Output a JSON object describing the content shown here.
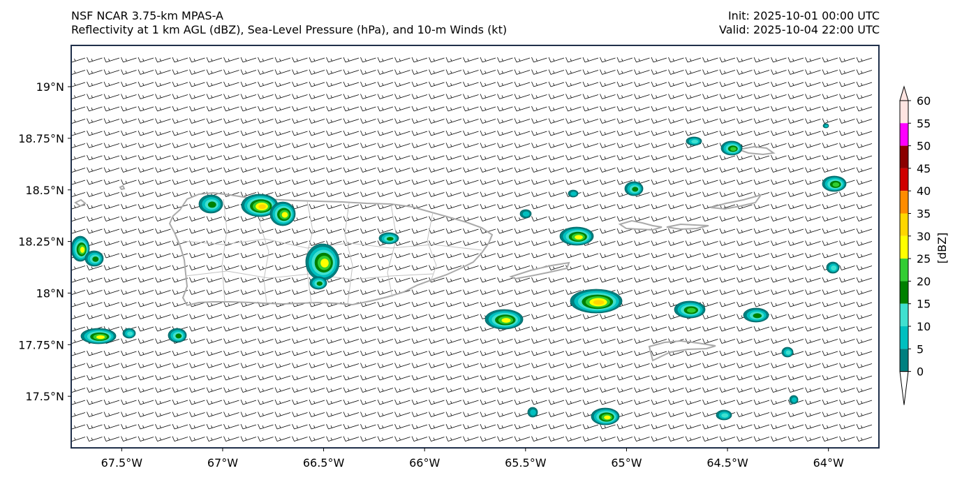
{
  "header": {
    "model": "NSF NCAR 3.75-km MPAS-A",
    "fields": "Reflectivity at 1 km AGL (dBZ), Sea-Level Pressure (hPa), and 10-m Winds (kt)",
    "init": "Init: 2025-10-01 00:00 UTC",
    "valid": "Valid: 2025-10-04 22:00 UTC"
  },
  "map": {
    "lon_range": [
      -67.75,
      -63.75
    ],
    "lat_range": [
      17.25,
      19.2
    ],
    "lat_ticks": [
      {
        "value": 19.0,
        "label": "19°N"
      },
      {
        "value": 18.75,
        "label": "18.75°N"
      },
      {
        "value": 18.5,
        "label": "18.5°N"
      },
      {
        "value": 18.25,
        "label": "18.25°N"
      },
      {
        "value": 18.0,
        "label": "18°N"
      },
      {
        "value": 17.75,
        "label": "17.75°N"
      },
      {
        "value": 17.5,
        "label": "17.5°N"
      }
    ],
    "lon_ticks": [
      {
        "value": -67.5,
        "label": "67.5°W"
      },
      {
        "value": -67.0,
        "label": "67°W"
      },
      {
        "value": -66.5,
        "label": "66.5°W"
      },
      {
        "value": -66.0,
        "label": "66°W"
      },
      {
        "value": -65.5,
        "label": "65.5°W"
      },
      {
        "value": -65.0,
        "label": "65°W"
      },
      {
        "value": -64.5,
        "label": "64.5°W"
      },
      {
        "value": -64.0,
        "label": "64°W"
      }
    ],
    "colors": {
      "coastline": "#a9a9a9",
      "barb": "#000000",
      "frame": "#1f2f4a"
    }
  },
  "colorbar": {
    "label": "[dBZ]",
    "ticks": [
      "0",
      "5",
      "10",
      "15",
      "20",
      "25",
      "30",
      "35",
      "40",
      "45",
      "50",
      "55",
      "60"
    ],
    "colors": [
      "#ffffff",
      "#008080",
      "#00c0c0",
      "#40e0d0",
      "#008000",
      "#32cd32",
      "#ffff00",
      "#ffd700",
      "#ff8c00",
      "#d00000",
      "#8b0000",
      "#ff00ff",
      "#ffe4e1"
    ]
  }
}
